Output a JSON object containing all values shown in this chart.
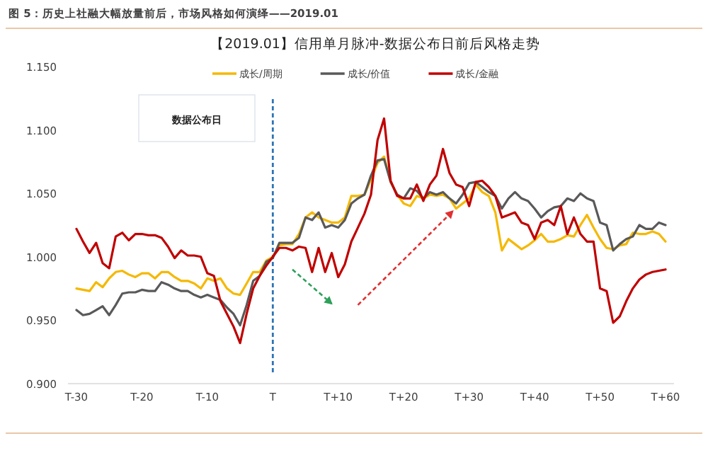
{
  "chart_data": {
    "type": "line",
    "title": "图 5：历史上社融大幅放量前后，市场风格如何演绎——2019.01",
    "subtitle": "【2019.01】信用单月脉冲-数据公布日前后风格走势",
    "categories": [
      "T-30",
      null,
      null,
      null,
      null,
      null,
      null,
      null,
      null,
      null,
      "T-20",
      null,
      null,
      null,
      null,
      null,
      null,
      null,
      null,
      null,
      "T-10",
      null,
      null,
      null,
      null,
      null,
      null,
      null,
      null,
      null,
      "T",
      null,
      null,
      null,
      null,
      null,
      null,
      null,
      null,
      null,
      "T+10",
      null,
      null,
      null,
      null,
      null,
      null,
      null,
      null,
      null,
      "T+20",
      null,
      null,
      null,
      null,
      null,
      null,
      null,
      null,
      null,
      "T+30",
      null,
      null,
      null,
      null,
      null,
      null,
      null,
      null,
      null,
      "T+40",
      null,
      null,
      null,
      null,
      null,
      null,
      null,
      null,
      null,
      "T+50",
      null,
      null,
      null,
      null,
      null,
      null,
      null,
      null,
      null,
      "T+60"
    ],
    "series": [
      {
        "name": "成长/周期",
        "color": "#f5b800",
        "values": [
          0.975,
          0.974,
          0.973,
          0.98,
          0.976,
          0.983,
          0.988,
          0.989,
          0.986,
          0.984,
          0.987,
          0.987,
          0.983,
          0.988,
          0.988,
          0.984,
          0.981,
          0.981,
          0.979,
          0.975,
          0.983,
          0.981,
          0.983,
          0.975,
          0.971,
          0.97,
          0.979,
          0.988,
          0.988,
          0.997,
          1.0,
          1.009,
          1.01,
          1.01,
          1.018,
          1.031,
          1.035,
          1.031,
          1.029,
          1.027,
          1.027,
          1.031,
          1.048,
          1.048,
          1.049,
          1.061,
          1.074,
          1.079,
          1.059,
          1.049,
          1.042,
          1.04,
          1.048,
          1.046,
          1.049,
          1.048,
          1.049,
          1.046,
          1.038,
          1.042,
          1.046,
          1.057,
          1.051,
          1.048,
          1.035,
          1.005,
          1.014,
          1.01,
          1.006,
          1.009,
          1.013,
          1.018,
          1.012,
          1.012,
          1.014,
          1.017,
          1.016,
          1.025,
          1.033,
          1.023,
          1.014,
          1.007,
          1.006,
          1.009,
          1.01,
          1.019,
          1.018,
          1.018,
          1.02,
          1.018,
          1.012
        ]
      },
      {
        "name": "成长/价值",
        "color": "#595959",
        "values": [
          0.958,
          0.954,
          0.955,
          0.958,
          0.961,
          0.954,
          0.962,
          0.971,
          0.972,
          0.972,
          0.974,
          0.973,
          0.973,
          0.98,
          0.978,
          0.975,
          0.973,
          0.973,
          0.97,
          0.968,
          0.97,
          0.968,
          0.966,
          0.96,
          0.955,
          0.946,
          0.962,
          0.981,
          0.985,
          0.996,
          0.999,
          1.011,
          1.011,
          1.011,
          1.015,
          1.031,
          1.029,
          1.035,
          1.023,
          1.025,
          1.023,
          1.029,
          1.042,
          1.046,
          1.049,
          1.064,
          1.076,
          1.077,
          1.059,
          1.049,
          1.046,
          1.054,
          1.052,
          1.046,
          1.051,
          1.049,
          1.051,
          1.046,
          1.042,
          1.049,
          1.058,
          1.059,
          1.055,
          1.051,
          1.048,
          1.038,
          1.046,
          1.051,
          1.046,
          1.044,
          1.038,
          1.031,
          1.036,
          1.039,
          1.04,
          1.046,
          1.044,
          1.05,
          1.046,
          1.044,
          1.027,
          1.025,
          1.005,
          1.01,
          1.014,
          1.016,
          1.025,
          1.022,
          1.022,
          1.027,
          1.025
        ]
      },
      {
        "name": "成长/金融",
        "color": "#c00000",
        "values": [
          1.022,
          1.012,
          1.003,
          1.011,
          0.995,
          0.991,
          1.016,
          1.019,
          1.013,
          1.018,
          1.018,
          1.017,
          1.017,
          1.015,
          1.008,
          0.999,
          1.005,
          1.001,
          1.001,
          1.0,
          0.987,
          0.985,
          0.965,
          0.955,
          0.945,
          0.932,
          0.955,
          0.975,
          0.985,
          0.993,
          1.0,
          1.007,
          1.007,
          1.005,
          1.008,
          1.007,
          0.988,
          1.007,
          0.988,
          1.003,
          0.984,
          0.994,
          1.012,
          1.023,
          1.034,
          1.049,
          1.092,
          1.109,
          1.06,
          1.048,
          1.046,
          1.046,
          1.057,
          1.044,
          1.057,
          1.064,
          1.085,
          1.066,
          1.057,
          1.055,
          1.04,
          1.059,
          1.06,
          1.055,
          1.048,
          1.031,
          1.033,
          1.035,
          1.027,
          1.025,
          1.014,
          1.027,
          1.029,
          1.025,
          1.04,
          1.018,
          1.031,
          1.018,
          1.012,
          1.012,
          0.975,
          0.973,
          0.948,
          0.953,
          0.965,
          0.975,
          0.982,
          0.986,
          0.988,
          0.989,
          0.99
        ]
      }
    ],
    "ylim": [
      0.9,
      1.15
    ],
    "yticks": [
      {
        "value": 0.9,
        "label": "0.900"
      },
      {
        "value": 0.95,
        "label": "0.950"
      },
      {
        "value": 1.0,
        "label": "1.000"
      },
      {
        "value": 1.05,
        "label": "1.050"
      },
      {
        "value": 1.1,
        "label": "1.100"
      },
      {
        "value": 1.15,
        "label": "1.150"
      }
    ],
    "ref_lines": [
      {
        "axis": "x",
        "value": "T",
        "color": "#2e75b6",
        "line_style": "dashed"
      }
    ],
    "annotations": [
      "数据公布日"
    ],
    "legend": "top",
    "grid": false
  }
}
